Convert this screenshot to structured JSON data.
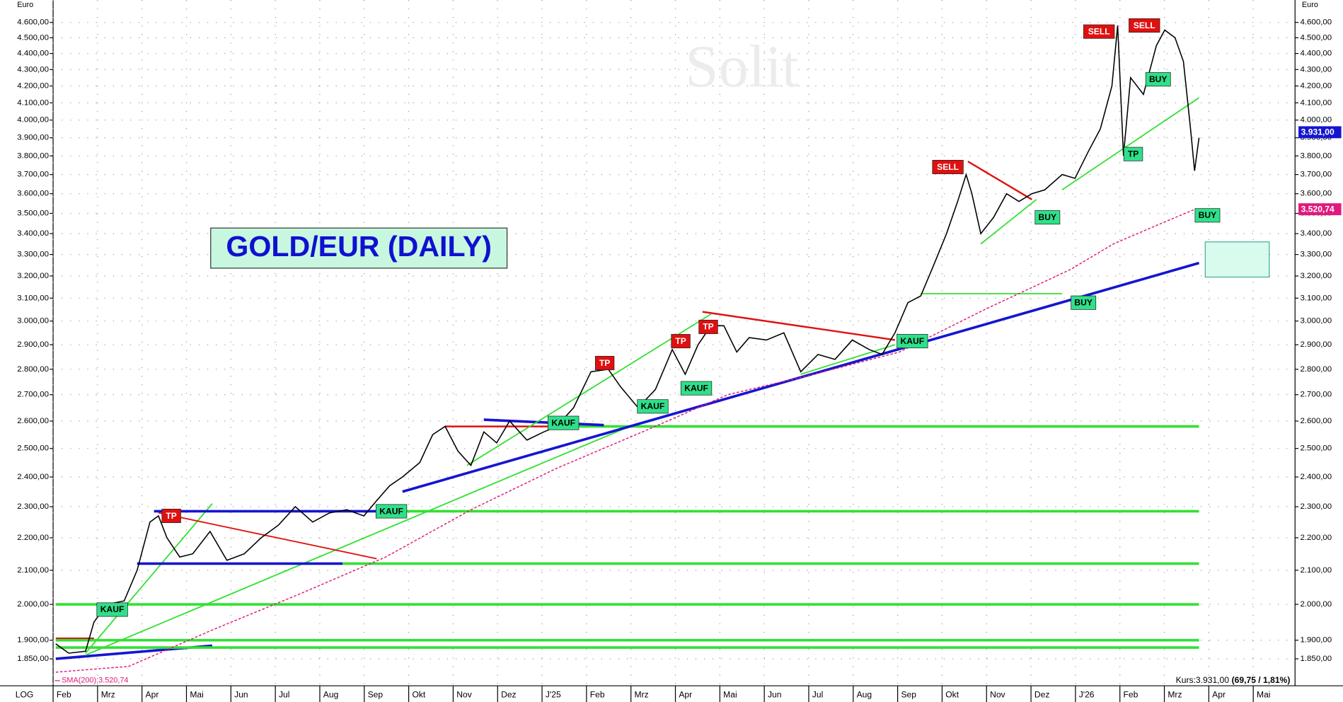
{
  "chart_data": {
    "type": "line",
    "title": "GOLD/EUR (DAILY)",
    "currency": "Euro",
    "scale_label": "LOG",
    "watermark": "Solit",
    "log_scale": true,
    "grid": true,
    "xlim": [
      0,
      27.94
    ],
    "ylim": [
      1780,
      4750
    ],
    "xticks": [
      {
        "value": 0,
        "label": "Feb"
      },
      {
        "value": 1,
        "label": "Mrz"
      },
      {
        "value": 2,
        "label": "Apr"
      },
      {
        "value": 3,
        "label": "Mai"
      },
      {
        "value": 4,
        "label": "Jun"
      },
      {
        "value": 5,
        "label": "Jul"
      },
      {
        "value": 6,
        "label": "Aug"
      },
      {
        "value": 7,
        "label": "Sep"
      },
      {
        "value": 8,
        "label": "Okt"
      },
      {
        "value": 9,
        "label": "Nov"
      },
      {
        "value": 10,
        "label": "Dez"
      },
      {
        "value": 11,
        "label": "J'25"
      },
      {
        "value": 12,
        "label": "Feb"
      },
      {
        "value": 13,
        "label": "Mrz"
      },
      {
        "value": 14,
        "label": "Apr"
      },
      {
        "value": 15,
        "label": "Mai"
      },
      {
        "value": 16,
        "label": "Jun"
      },
      {
        "value": 17,
        "label": "Jul"
      },
      {
        "value": 18,
        "label": "Aug"
      },
      {
        "value": 19,
        "label": "Sep"
      },
      {
        "value": 20,
        "label": "Okt"
      },
      {
        "value": 21,
        "label": "Nov"
      },
      {
        "value": 22,
        "label": "Dez"
      },
      {
        "value": 23,
        "label": "J'26"
      },
      {
        "value": 24,
        "label": "Feb"
      },
      {
        "value": 25,
        "label": "Mrz"
      },
      {
        "value": 26,
        "label": "Apr"
      },
      {
        "value": 27,
        "label": "Mai"
      }
    ],
    "yticks": [
      {
        "value": 1850,
        "label": "1.850,00"
      },
      {
        "value": 1900,
        "label": "1.900,00"
      },
      {
        "value": 2000,
        "label": "2.000,00"
      },
      {
        "value": 2100,
        "label": "2.100,00"
      },
      {
        "value": 2200,
        "label": "2.200,00"
      },
      {
        "value": 2300,
        "label": "2.300,00"
      },
      {
        "value": 2400,
        "label": "2.400,00"
      },
      {
        "value": 2500,
        "label": "2.500,00"
      },
      {
        "value": 2600,
        "label": "2.600,00"
      },
      {
        "value": 2700,
        "label": "2.700,00"
      },
      {
        "value": 2800,
        "label": "2.800,00"
      },
      {
        "value": 2900,
        "label": "2.900,00"
      },
      {
        "value": 3000,
        "label": "3.000,00"
      },
      {
        "value": 3100,
        "label": "3.100,00"
      },
      {
        "value": 3200,
        "label": "3.200,00"
      },
      {
        "value": 3300,
        "label": "3.300,00"
      },
      {
        "value": 3400,
        "label": "3.400,00"
      },
      {
        "value": 3500,
        "label": "3.500,00"
      },
      {
        "value": 3600,
        "label": "3.600,00"
      },
      {
        "value": 3700,
        "label": "3.700,00"
      },
      {
        "value": 3800,
        "label": "3.800,00"
      },
      {
        "value": 3900,
        "label": "3.900,00"
      },
      {
        "value": 4000,
        "label": "4.000,00"
      },
      {
        "value": 4100,
        "label": "4.100,00"
      },
      {
        "value": 4200,
        "label": "4.200,00"
      },
      {
        "value": 4300,
        "label": "4.300,00"
      },
      {
        "value": 4400,
        "label": "4.400,00"
      },
      {
        "value": 4500,
        "label": "4.500,00"
      },
      {
        "value": 4600,
        "label": "4.600,00"
      }
    ],
    "series": [
      {
        "color": "#000000",
        "x": [
          0.06,
          0.35,
          0.73,
          0.92,
          1.21,
          1.6,
          1.89,
          2.18,
          2.37,
          2.56,
          2.85,
          3.14,
          3.53,
          3.91,
          4.3,
          4.68,
          5.07,
          5.45,
          5.84,
          6.22,
          6.61,
          6.99,
          7.28,
          7.57,
          7.86,
          8.25,
          8.54,
          8.82,
          9.11,
          9.4,
          9.69,
          9.98,
          10.27,
          10.66,
          11.04,
          11.33,
          11.71,
          12.1,
          12.49,
          12.77,
          13.16,
          13.55,
          13.93,
          14.22,
          14.51,
          14.8,
          15.09,
          15.38,
          15.66,
          16.05,
          16.44,
          16.82,
          17.21,
          17.59,
          17.98,
          18.36,
          18.65,
          18.94,
          19.23,
          19.52,
          19.81,
          20.1,
          20.35,
          20.54,
          20.67,
          20.87,
          21.16,
          21.45,
          21.73,
          22.02,
          22.31,
          22.7,
          22.99,
          23.28,
          23.56,
          23.82,
          23.95,
          24.08,
          24.24,
          24.53,
          24.82,
          25.01,
          25.24,
          25.43,
          25.59,
          25.68,
          25.78
        ],
        "values": [
          1890,
          1865,
          1870,
          1950,
          2000,
          2010,
          2100,
          2250,
          2270,
          2200,
          2140,
          2150,
          2220,
          2130,
          2150,
          2200,
          2240,
          2300,
          2250,
          2280,
          2290,
          2270,
          2320,
          2370,
          2400,
          2450,
          2550,
          2580,
          2490,
          2440,
          2560,
          2520,
          2600,
          2530,
          2560,
          2580,
          2650,
          2790,
          2800,
          2730,
          2650,
          2720,
          2880,
          2780,
          2900,
          2980,
          2980,
          2870,
          2930,
          2920,
          2950,
          2790,
          2860,
          2840,
          2920,
          2880,
          2860,
          2950,
          3080,
          3110,
          3250,
          3400,
          3560,
          3700,
          3600,
          3400,
          3480,
          3600,
          3560,
          3600,
          3620,
          3700,
          3680,
          3820,
          3950,
          4200,
          4580,
          3800,
          4250,
          4150,
          4450,
          4550,
          4500,
          4350,
          3950,
          3720,
          3900
        ]
      },
      {
        "name": "SMA(200):3.520,74",
        "color": "#e0197d",
        "x": [
          0.06,
          1.7,
          3.62,
          5.55,
          7.48,
          9.4,
          11.33,
          13.26,
          15.18,
          17.11,
          19.04,
          20.96,
          22.89,
          23.85,
          24.82,
          25.68
        ],
        "values": [
          1815,
          1830,
          1930,
          2030,
          2140,
          2290,
          2430,
          2560,
          2700,
          2780,
          2870,
          3050,
          3230,
          3350,
          3440,
          3520
        ]
      }
    ],
    "trendlines": [
      {
        "color": "#1515d0",
        "width": 3,
        "points": [
          [
            0.06,
            1850
          ],
          [
            3.58,
            1885
          ]
        ]
      },
      {
        "color": "#e01010",
        "width": 2,
        "points": [
          [
            0.06,
            2000
          ],
          [
            1.7,
            2000
          ]
        ]
      },
      {
        "color": "#e01010",
        "width": 2,
        "points": [
          [
            0.06,
            1905
          ],
          [
            0.92,
            1905
          ]
        ]
      },
      {
        "color": "#33e033",
        "width": 3,
        "points": [
          [
            0.06,
            1880
          ],
          [
            25.78,
            1880
          ]
        ]
      },
      {
        "color": "#33e033",
        "width": 3,
        "points": [
          [
            0.06,
            1900
          ],
          [
            25.78,
            1900
          ]
        ]
      },
      {
        "color": "#33e033",
        "width": 3,
        "points": [
          [
            0.06,
            2000
          ],
          [
            25.78,
            2000
          ]
        ]
      },
      {
        "color": "#33e033",
        "width": 3,
        "points": [
          [
            6.51,
            2120
          ],
          [
            25.78,
            2120
          ]
        ]
      },
      {
        "color": "#33e033",
        "width": 3,
        "points": [
          [
            7.28,
            2285
          ],
          [
            25.78,
            2285
          ]
        ]
      },
      {
        "color": "#33e033",
        "width": 3,
        "points": [
          [
            11.33,
            2580
          ],
          [
            25.78,
            2580
          ]
        ]
      },
      {
        "color": "#33e033",
        "width": 1.5,
        "points": [
          [
            0.73,
            1865
          ],
          [
            3.58,
            2310
          ]
        ]
      },
      {
        "color": "#33e033",
        "width": 1.5,
        "points": [
          [
            0.73,
            1860
          ],
          [
            12.97,
            2580
          ]
        ]
      },
      {
        "color": "#1515d0",
        "width": 3,
        "points": [
          [
            2.27,
            2285
          ],
          [
            7.28,
            2285
          ]
        ]
      },
      {
        "color": "#1515d0",
        "width": 3,
        "points": [
          [
            1.89,
            2120
          ],
          [
            6.51,
            2120
          ]
        ]
      },
      {
        "color": "#e01010",
        "width": 1.5,
        "points": [
          [
            2.37,
            2280
          ],
          [
            7.28,
            2135
          ]
        ]
      },
      {
        "color": "#1515d0",
        "width": 3,
        "points": [
          [
            7.86,
            2350
          ],
          [
            25.78,
            3260
          ]
        ]
      },
      {
        "color": "#e01010",
        "width": 2,
        "points": [
          [
            8.82,
            2580
          ],
          [
            11.33,
            2580
          ]
        ]
      },
      {
        "color": "#1515d0",
        "width": 3,
        "points": [
          [
            9.69,
            2605
          ],
          [
            12.39,
            2585
          ]
        ]
      },
      {
        "color": "#33e033",
        "width": 1.5,
        "points": [
          [
            9.31,
            2440
          ],
          [
            14.8,
            3030
          ]
        ]
      },
      {
        "color": "#e01010",
        "width": 2,
        "points": [
          [
            14.61,
            3040
          ],
          [
            18.94,
            2920
          ]
        ]
      },
      {
        "color": "#33e033",
        "width": 1.5,
        "points": [
          [
            16.82,
            2780
          ],
          [
            18.94,
            2900
          ]
        ]
      },
      {
        "color": "#33e033",
        "width": 1.5,
        "points": [
          [
            19.52,
            3120
          ],
          [
            22.7,
            3120
          ]
        ]
      },
      {
        "color": "#e01010",
        "width": 2,
        "points": [
          [
            20.58,
            3770
          ],
          [
            22.02,
            3570
          ]
        ]
      },
      {
        "color": "#33e033",
        "width": 1.5,
        "points": [
          [
            20.87,
            3350
          ],
          [
            22.12,
            3570
          ]
        ]
      },
      {
        "color": "#33e033",
        "width": 1.5,
        "points": [
          [
            22.7,
            3620
          ],
          [
            25.78,
            4130
          ]
        ]
      }
    ],
    "signals": [
      {
        "text": "KAUF",
        "color": "#2ee08a",
        "x": 1.33,
        "y": 1985
      },
      {
        "text": "TP",
        "color": "#e01010",
        "x": 2.66,
        "y": 2270
      },
      {
        "text": "KAUF",
        "color": "#2ee08a",
        "x": 7.61,
        "y": 2285
      },
      {
        "text": "KAUF",
        "color": "#2ee08a",
        "x": 11.48,
        "y": 2593
      },
      {
        "text": "TP",
        "color": "#e01010",
        "x": 12.41,
        "y": 2825
      },
      {
        "text": "KAUF",
        "color": "#2ee08a",
        "x": 13.49,
        "y": 2655
      },
      {
        "text": "TP",
        "color": "#e01010",
        "x": 14.12,
        "y": 2915
      },
      {
        "text": "TP",
        "color": "#e01010",
        "x": 14.74,
        "y": 2975
      },
      {
        "text": "KAUF",
        "color": "#2ee08a",
        "x": 14.47,
        "y": 2725
      },
      {
        "text": "KAUF",
        "color": "#2ee08a",
        "x": 19.33,
        "y": 2915
      },
      {
        "text": "SELL",
        "color": "#e01010",
        "x": 20.13,
        "y": 3740
      },
      {
        "text": "BUY",
        "color": "#2ee08a",
        "x": 22.37,
        "y": 3480
      },
      {
        "text": "BUY",
        "color": "#2ee08a",
        "x": 23.18,
        "y": 3080
      },
      {
        "text": "SELL",
        "color": "#e01010",
        "x": 23.53,
        "y": 4540
      },
      {
        "text": "SELL",
        "color": "#e01010",
        "x": 24.55,
        "y": 4580
      },
      {
        "text": "BUY",
        "color": "#2ee08a",
        "x": 24.86,
        "y": 4240
      },
      {
        "text": "TP",
        "color": "#2ee08a",
        "x": 24.3,
        "y": 3810
      },
      {
        "text": "BUY",
        "color": "#2ee08a",
        "x": 25.97,
        "y": 3490
      }
    ],
    "target_zone": {
      "color": "#d8fbee",
      "x": [
        25.92,
        27.36
      ],
      "y": [
        3195,
        3360
      ]
    },
    "price_tags": [
      {
        "value": 3931,
        "label": "3.931,00",
        "color": "#1515d0"
      },
      {
        "value": 3520.74,
        "label": "3.520,74",
        "color": "#e0197d"
      }
    ],
    "kurs_label": "Kurs:3.931,00",
    "kurs_change": "(69,75 / 1,81%)"
  }
}
